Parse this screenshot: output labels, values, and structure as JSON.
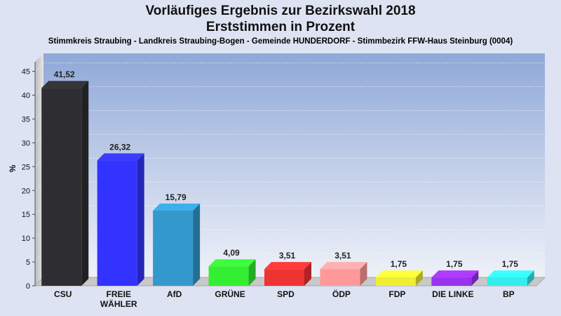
{
  "title_line1": "Vorläufiges Ergebnis zur Bezirkswahl 2018",
  "title_line2": "Erststimmen in Prozent",
  "subtitle": "Stimmkreis Straubing - Landkreis Straubing-Bogen - Gemeinde HUNDERDORF - Stimmbezirk FFW-Haus Steinburg (0004)",
  "chart_data": {
    "type": "bar",
    "title": "Vorläufiges Ergebnis zur Bezirkswahl 2018",
    "subtitle": "Erststimmen in Prozent",
    "ylabel": "%",
    "ylim": [
      0,
      47
    ],
    "yticks": [
      0,
      5,
      10,
      15,
      20,
      25,
      30,
      35,
      40,
      45
    ],
    "grid": true,
    "categories": [
      "CSU",
      "FREIE WÄHLER",
      "AfD",
      "GRÜNE",
      "SPD",
      "ÖDP",
      "FDP",
      "DIE LINKE",
      "BP"
    ],
    "category_lines": [
      [
        "CSU"
      ],
      [
        "FREIE",
        "WÄHLER"
      ],
      [
        "AfD"
      ],
      [
        "GRÜNE"
      ],
      [
        "SPD"
      ],
      [
        "ÖDP"
      ],
      [
        "FDP"
      ],
      [
        "DIE LINKE"
      ],
      [
        "BP"
      ]
    ],
    "values": [
      41.52,
      26.32,
      15.79,
      4.09,
      3.51,
      3.51,
      1.75,
      1.75,
      1.75
    ],
    "value_labels": [
      "41,52",
      "26,32",
      "15,79",
      "4,09",
      "3,51",
      "3,51",
      "1,75",
      "1,75",
      "1,75"
    ],
    "colors": [
      "#2e2e32",
      "#3333ff",
      "#3399cc",
      "#33ee33",
      "#ee3333",
      "#ff9999",
      "#eeee33",
      "#9933ee",
      "#33eeee"
    ]
  }
}
